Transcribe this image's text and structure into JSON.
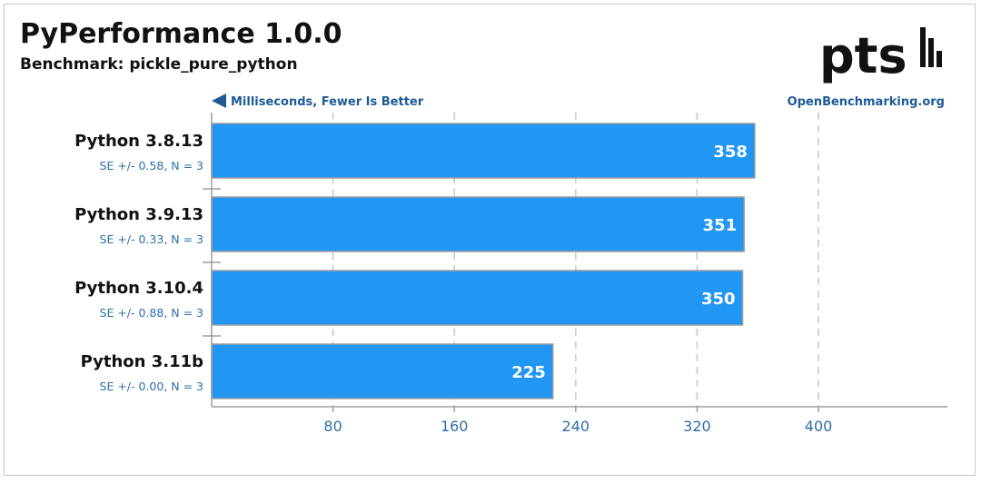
{
  "header": {
    "title": "PyPerformance 1.0.0",
    "subtitle": "Benchmark: pickle_pure_python",
    "axis_note": "Milliseconds, Fewer Is Better",
    "source": "OpenBenchmarking.org",
    "logo_text": "pts"
  },
  "colors": {
    "bar": "#2196f3",
    "bar_border": "#9e9e9e",
    "grid": "#c7c7c7",
    "axis": "#9e9e9e",
    "accent_text": "#1f5a96"
  },
  "chart_data": {
    "type": "bar",
    "orientation": "horizontal",
    "title": "PyPerformance 1.0.0",
    "subtitle": "Benchmark: pickle_pure_python",
    "xlabel": "Milliseconds, Fewer Is Better",
    "categories": [
      "Python 3.8.13",
      "Python 3.9.13",
      "Python 3.10.4",
      "Python 3.11b"
    ],
    "values": [
      358,
      351,
      350,
      225
    ],
    "value_labels": [
      "358",
      "351",
      "350",
      "225"
    ],
    "errors": [
      "SE +/- 0.58, N = 3",
      "SE +/- 0.33, N = 3",
      "SE +/- 0.88, N = 3",
      "SE +/- 0.00, N = 3"
    ],
    "ticks": [
      80,
      160,
      240,
      320,
      400
    ],
    "xlim": [
      0,
      485
    ],
    "grid": true
  }
}
